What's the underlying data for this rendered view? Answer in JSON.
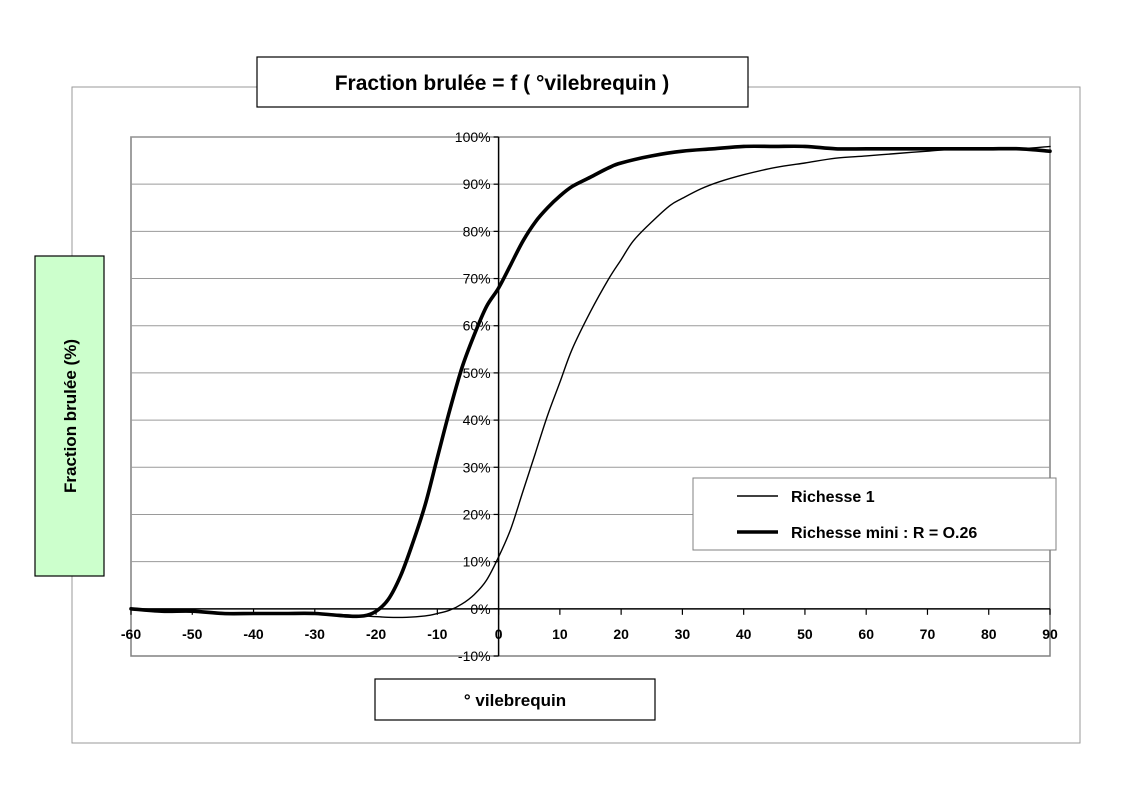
{
  "chart_data": {
    "type": "line",
    "title": "Fraction brulée  =  f ( °vilebrequin )",
    "xlabel": "° vilebrequin",
    "ylabel": "Fraction  brulée (%)",
    "xlim": [
      -60,
      90
    ],
    "ylim": [
      -10,
      100
    ],
    "x_ticks": [
      -60,
      -50,
      -40,
      -30,
      -20,
      -10,
      0,
      10,
      20,
      30,
      40,
      50,
      60,
      70,
      80,
      90
    ],
    "x_tick_labels": [
      "-60",
      "-50",
      "-40",
      "-30",
      "-20",
      "-10",
      "0",
      "10",
      "20",
      "30",
      "40",
      "50",
      "60",
      "70",
      "80",
      "90"
    ],
    "y_ticks": [
      -10,
      0,
      10,
      20,
      30,
      40,
      50,
      60,
      70,
      80,
      90,
      100
    ],
    "y_tick_labels": [
      "-10%",
      "0%",
      "10%",
      "20%",
      "30%",
      "40%",
      "50%",
      "60%",
      "70%",
      "80%",
      "90%",
      "100%"
    ],
    "grid": "horizontal",
    "legend_position": "lower-right",
    "ylabel_box_color": "#ccffcc",
    "series": [
      {
        "name": "Richesse  1",
        "style": "thin",
        "x": [
          -60,
          -50,
          -40,
          -30,
          -22,
          -18,
          -15,
          -12,
          -10,
          -8,
          -6,
          -4,
          -2,
          0,
          2,
          4,
          6,
          8,
          10,
          12,
          15,
          18,
          20,
          22,
          25,
          28,
          30,
          33,
          36,
          40,
          45,
          50,
          55,
          60,
          65,
          70,
          75,
          80,
          85,
          90
        ],
        "y": [
          0,
          -0.5,
          -1,
          -1,
          -1.5,
          -1.8,
          -1.8,
          -1.5,
          -1,
          -0.3,
          1,
          3,
          6,
          11,
          17,
          25,
          33,
          41,
          48,
          55,
          63,
          70,
          74,
          78,
          82,
          85.5,
          87,
          89,
          90.5,
          92,
          93.5,
          94.5,
          95.5,
          96,
          96.5,
          97,
          97.5,
          97.5,
          97.5,
          98
        ]
      },
      {
        "name": "Richesse mini : R = O.26",
        "style": "thick",
        "x": [
          -60,
          -55,
          -50,
          -45,
          -40,
          -35,
          -30,
          -25,
          -22,
          -20,
          -18,
          -16,
          -14,
          -12,
          -10,
          -8,
          -6,
          -4,
          -2,
          0,
          2,
          4,
          6,
          8,
          10,
          12,
          15,
          18,
          20,
          25,
          30,
          35,
          40,
          45,
          50,
          55,
          60,
          65,
          70,
          75,
          80,
          85,
          90
        ],
        "y": [
          0,
          -0.5,
          -0.5,
          -1,
          -1,
          -1,
          -1,
          -1.5,
          -1.5,
          -0.5,
          2,
          7,
          14,
          22,
          32,
          42,
          51,
          58,
          64,
          68,
          73,
          78,
          82,
          85,
          87.5,
          89.5,
          91.5,
          93.5,
          94.5,
          96,
          97,
          97.5,
          98,
          98,
          98,
          97.5,
          97.5,
          97.5,
          97.5,
          97.5,
          97.5,
          97.5,
          97
        ]
      }
    ]
  }
}
